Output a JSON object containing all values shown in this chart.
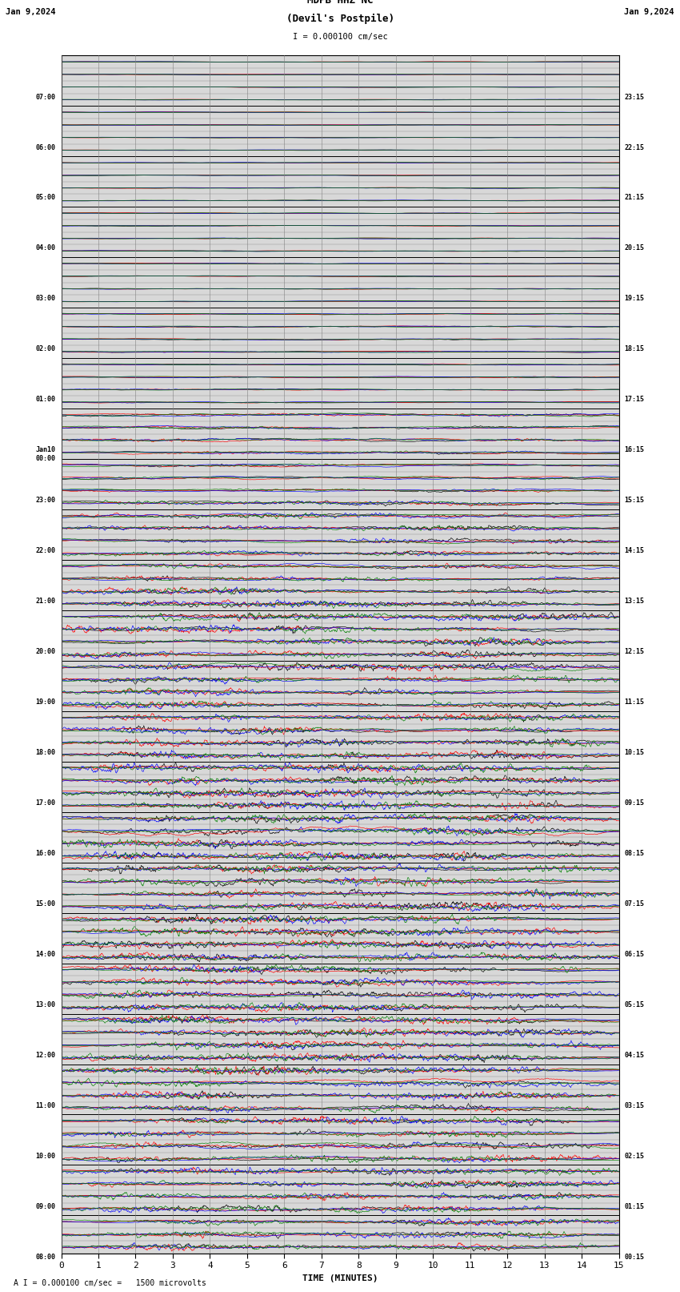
{
  "title_line1": "MDPB HHZ NC",
  "title_line2": "(Devil's Postpile)",
  "scale_label": "I = 0.000100 cm/sec",
  "footer_label": "A I = 0.000100 cm/sec =   1500 microvolts",
  "xlabel": "TIME (MINUTES)",
  "left_times": [
    "08:00",
    "",
    "",
    "",
    "09:00",
    "",
    "",
    "",
    "10:00",
    "",
    "",
    "",
    "11:00",
    "",
    "",
    "",
    "12:00",
    "",
    "",
    "",
    "13:00",
    "",
    "",
    "",
    "14:00",
    "",
    "",
    "",
    "15:00",
    "",
    "",
    "",
    "16:00",
    "",
    "",
    "",
    "17:00",
    "",
    "",
    "",
    "18:00",
    "",
    "",
    "",
    "19:00",
    "",
    "",
    "",
    "20:00",
    "",
    "",
    "",
    "21:00",
    "",
    "",
    "",
    "22:00",
    "",
    "",
    "",
    "23:00",
    "",
    "",
    "",
    "Jan10\n00:00",
    "",
    "",
    "",
    "01:00",
    "",
    "",
    "",
    "02:00",
    "",
    "",
    "",
    "03:00",
    "",
    "",
    "",
    "04:00",
    "",
    "",
    "",
    "05:00",
    "",
    "",
    "",
    "06:00",
    "",
    "",
    "",
    "07:00",
    "",
    ""
  ],
  "right_times": [
    "00:15",
    "",
    "",
    "",
    "01:15",
    "",
    "",
    "",
    "02:15",
    "",
    "",
    "",
    "03:15",
    "",
    "",
    "",
    "04:15",
    "",
    "",
    "",
    "05:15",
    "",
    "",
    "",
    "06:15",
    "",
    "",
    "",
    "07:15",
    "",
    "",
    "",
    "08:15",
    "",
    "",
    "",
    "09:15",
    "",
    "",
    "",
    "10:15",
    "",
    "",
    "",
    "11:15",
    "",
    "",
    "",
    "12:15",
    "",
    "",
    "",
    "13:15",
    "",
    "",
    "",
    "14:15",
    "",
    "",
    "",
    "15:15",
    "",
    "",
    "",
    "16:15",
    "",
    "",
    "",
    "17:15",
    "",
    "",
    "",
    "18:15",
    "",
    "",
    "",
    "19:15",
    "",
    "",
    "",
    "20:15",
    "",
    "",
    "",
    "21:15",
    "",
    "",
    "",
    "22:15",
    "",
    "",
    "",
    "23:15",
    "",
    ""
  ],
  "n_rows": 95,
  "n_cols": 4,
  "colors": [
    "black",
    "red",
    "blue",
    "green"
  ],
  "bg_color": "#ffffff",
  "plot_bg": "#d8d8d8",
  "seed": 42
}
